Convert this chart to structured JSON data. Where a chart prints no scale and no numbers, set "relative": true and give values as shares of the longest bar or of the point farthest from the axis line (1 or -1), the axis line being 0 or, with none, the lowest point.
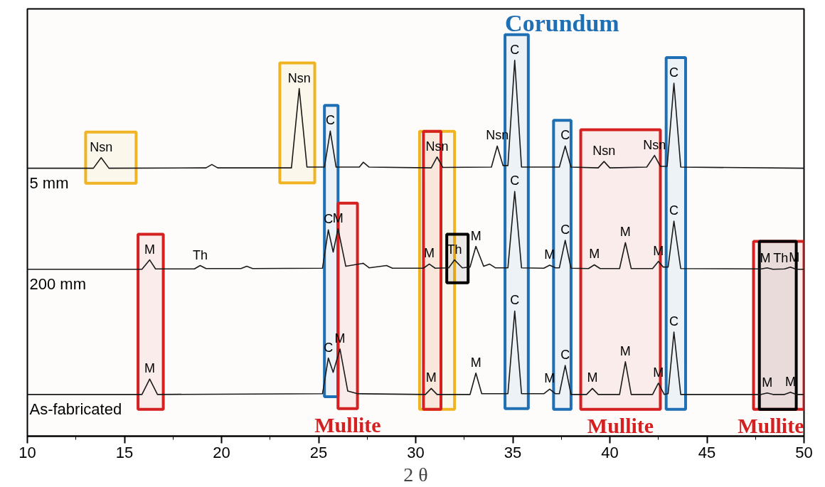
{
  "chart_data": {
    "type": "line",
    "relative": true,
    "xlabel": "2 θ",
    "xlim": [
      10,
      50
    ],
    "xticks": [
      10,
      {
        "value": 12.5,
        "label": null
      },
      15,
      {
        "value": 17.5,
        "label": null
      },
      20,
      {
        "value": 22.5,
        "label": null
      },
      25,
      {
        "value": 27.5,
        "label": null
      },
      30,
      {
        "value": 32.5,
        "label": null
      },
      35,
      {
        "value": 37.5,
        "label": null
      },
      40,
      {
        "value": 42.5,
        "label": null
      },
      45,
      {
        "value": 47.5,
        "label": null
      },
      50
    ],
    "grid": false,
    "marker": "none",
    "line_style": "solid",
    "tick_labels": "x",
    "series": [
      {
        "name": "5 mm",
        "color": "#1a1a1a",
        "x": [
          10,
          13.4,
          13.8,
          14.2,
          19.2,
          19.5,
          19.8,
          23.6,
          24.0,
          24.4,
          25.3,
          25.6,
          25.9,
          27.1,
          27.3,
          27.6,
          30.8,
          31.1,
          31.4,
          33.9,
          34.2,
          34.5,
          34.75,
          35.1,
          35.45,
          37.4,
          37.7,
          38.0,
          39.4,
          39.7,
          40.0,
          41.9,
          42.3,
          42.6,
          42.95,
          43.3,
          43.65,
          50
        ],
        "values": [
          0.713,
          0.713,
          0.741,
          0.713,
          0.714,
          0.723,
          0.714,
          0.714,
          0.925,
          0.716,
          0.716,
          0.812,
          0.716,
          0.716,
          0.729,
          0.716,
          0.714,
          0.743,
          0.715,
          0.716,
          0.772,
          0.72,
          0.72,
          1.0,
          0.716,
          0.716,
          0.772,
          0.716,
          0.714,
          0.731,
          0.714,
          0.716,
          0.747,
          0.718,
          0.718,
          0.939,
          0.716,
          0.713
        ]
      },
      {
        "name": "200 mm",
        "color": "#1a1a1a",
        "x": [
          10,
          15.9,
          16.3,
          16.6,
          18.6,
          18.9,
          19.2,
          21.0,
          21.3,
          21.6,
          25.2,
          25.5,
          25.75,
          26.0,
          26.4,
          27.3,
          27.6,
          28.5,
          28.8,
          30.4,
          30.7,
          31.0,
          31.7,
          32.0,
          32.4,
          32.8,
          33.1,
          33.5,
          33.8,
          34.1,
          34.75,
          35.1,
          35.45,
          36.6,
          36.9,
          37.2,
          37.4,
          37.7,
          38.0,
          38.9,
          39.2,
          39.5,
          40.5,
          40.8,
          41.1,
          42.2,
          42.5,
          42.75,
          43.0,
          43.3,
          43.65,
          47.8,
          48.1,
          48.4,
          49.0,
          49.3,
          49.6,
          50
        ],
        "values": [
          0.444,
          0.444,
          0.469,
          0.445,
          0.445,
          0.454,
          0.446,
          0.446,
          0.452,
          0.446,
          0.447,
          0.549,
          0.49,
          0.552,
          0.452,
          0.46,
          0.448,
          0.454,
          0.447,
          0.447,
          0.458,
          0.447,
          0.448,
          0.469,
          0.448,
          0.45,
          0.505,
          0.452,
          0.458,
          0.448,
          0.448,
          0.651,
          0.448,
          0.447,
          0.455,
          0.448,
          0.448,
          0.521,
          0.447,
          0.446,
          0.456,
          0.446,
          0.446,
          0.515,
          0.446,
          0.446,
          0.465,
          0.45,
          0.45,
          0.572,
          0.446,
          0.445,
          0.448,
          0.444,
          0.445,
          0.45,
          0.444,
          0.444
        ]
      },
      {
        "name": "As-fabricated",
        "color": "#1a1a1a",
        "x": [
          10,
          15.9,
          16.3,
          16.7,
          25.2,
          25.5,
          25.75,
          26.1,
          26.5,
          27.0,
          30.5,
          30.8,
          31.1,
          32.8,
          33.1,
          33.4,
          34.75,
          35.1,
          35.45,
          36.6,
          36.9,
          37.2,
          37.4,
          37.7,
          38.0,
          38.8,
          39.1,
          39.4,
          40.5,
          40.8,
          41.1,
          42.2,
          42.5,
          42.8,
          43.0,
          43.3,
          43.65,
          47.8,
          48.1,
          48.4,
          49.0,
          49.3,
          49.6,
          50
        ],
        "values": [
          0.111,
          0.111,
          0.152,
          0.111,
          0.113,
          0.208,
          0.17,
          0.232,
          0.12,
          0.113,
          0.111,
          0.127,
          0.111,
          0.111,
          0.168,
          0.113,
          0.113,
          0.333,
          0.113,
          0.113,
          0.125,
          0.113,
          0.113,
          0.188,
          0.111,
          0.111,
          0.127,
          0.111,
          0.111,
          0.198,
          0.111,
          0.111,
          0.141,
          0.111,
          0.113,
          0.277,
          0.111,
          0.111,
          0.115,
          0.111,
          0.111,
          0.117,
          0.111,
          0.111
        ]
      }
    ],
    "annotations": [
      {
        "text": "Nsn",
        "x": 13.8,
        "y": 0.741
      },
      {
        "text": "Nsn",
        "x": 24.0,
        "y": 0.925
      },
      {
        "text": "C",
        "x": 25.6,
        "y": 0.812
      },
      {
        "text": "Nsn",
        "x": 31.1,
        "y": 0.743
      },
      {
        "text": "Nsn",
        "x": 34.2,
        "y": 0.772
      },
      {
        "text": "C",
        "x": 35.1,
        "y": 1.0
      },
      {
        "text": "C",
        "x": 37.7,
        "y": 0.772
      },
      {
        "text": "Nsn",
        "x": 39.7,
        "y": 0.731
      },
      {
        "text": "Nsn",
        "x": 42.3,
        "y": 0.747
      },
      {
        "text": "C",
        "x": 43.3,
        "y": 0.939
      },
      {
        "text": "M",
        "x": 16.3,
        "y": 0.469
      },
      {
        "text": "Th",
        "x": 18.9,
        "y": 0.454
      },
      {
        "text": "C",
        "x": 25.5,
        "y": 0.549
      },
      {
        "text": "M",
        "x": 26.0,
        "y": 0.552
      },
      {
        "text": "M",
        "x": 30.7,
        "y": 0.458
      },
      {
        "text": "Th",
        "x": 32.0,
        "y": 0.469
      },
      {
        "text": "M",
        "x": 33.1,
        "y": 0.505
      },
      {
        "text": "C",
        "x": 35.1,
        "y": 0.651
      },
      {
        "text": "M",
        "x": 36.9,
        "y": 0.455
      },
      {
        "text": "C",
        "x": 37.7,
        "y": 0.521
      },
      {
        "text": "M",
        "x": 39.2,
        "y": 0.456
      },
      {
        "text": "M",
        "x": 40.8,
        "y": 0.515
      },
      {
        "text": "M",
        "x": 42.5,
        "y": 0.465
      },
      {
        "text": "C",
        "x": 43.3,
        "y": 0.572
      },
      {
        "text": "M",
        "x": 48.0,
        "y": 0.446
      },
      {
        "text": "Th",
        "x": 48.8,
        "y": 0.446
      },
      {
        "text": "M",
        "x": 49.5,
        "y": 0.448
      },
      {
        "text": "M",
        "x": 16.3,
        "y": 0.152
      },
      {
        "text": "C",
        "x": 25.5,
        "y": 0.208
      },
      {
        "text": "M",
        "x": 26.1,
        "y": 0.232
      },
      {
        "text": "M",
        "x": 30.8,
        "y": 0.127
      },
      {
        "text": "M",
        "x": 33.1,
        "y": 0.168
      },
      {
        "text": "C",
        "x": 35.1,
        "y": 0.333
      },
      {
        "text": "M",
        "x": 36.9,
        "y": 0.125
      },
      {
        "text": "C",
        "x": 37.7,
        "y": 0.188
      },
      {
        "text": "M",
        "x": 39.1,
        "y": 0.127
      },
      {
        "text": "M",
        "x": 40.8,
        "y": 0.198
      },
      {
        "text": "M",
        "x": 42.5,
        "y": 0.141
      },
      {
        "text": "C",
        "x": 43.3,
        "y": 0.277
      },
      {
        "text": "M",
        "x": 48.1,
        "y": 0.115
      },
      {
        "text": "M",
        "x": 49.3,
        "y": 0.117
      }
    ],
    "bands": [
      {
        "axis": "x",
        "from": 13.0,
        "to": 15.6,
        "color": "#f0b323",
        "label": null
      },
      {
        "axis": "x",
        "from": 23.0,
        "to": 24.8,
        "color": "#f0b323",
        "label": null
      },
      {
        "axis": "x",
        "from": 30.2,
        "to": 32.0,
        "color": "#f0b323",
        "label": null
      },
      {
        "axis": "x",
        "from": 25.3,
        "to": 26.0,
        "color": "#1f6fb5",
        "label": null
      },
      {
        "axis": "x",
        "from": 34.6,
        "to": 35.8,
        "color": "#1f6fb5",
        "label": "Corundum"
      },
      {
        "axis": "x",
        "from": 37.1,
        "to": 38.0,
        "color": "#1f6fb5",
        "label": null
      },
      {
        "axis": "x",
        "from": 42.9,
        "to": 43.9,
        "color": "#1f6fb5",
        "label": null
      },
      {
        "axis": "x",
        "from": 15.7,
        "to": 17.0,
        "color": "#d42020",
        "label": null
      },
      {
        "axis": "x",
        "from": 26.0,
        "to": 27.0,
        "color": "#d42020",
        "label": "Mullite"
      },
      {
        "axis": "x",
        "from": 30.4,
        "to": 31.3,
        "color": "#d42020",
        "label": null
      },
      {
        "axis": "x",
        "from": 38.5,
        "to": 42.6,
        "color": "#d42020",
        "label": "Mullite"
      },
      {
        "axis": "x",
        "from": 47.4,
        "to": 50.0,
        "color": "#d42020",
        "label": "Mullite"
      },
      {
        "axis": "x",
        "from": 31.6,
        "to": 32.7,
        "color": "#000000",
        "label": null
      },
      {
        "axis": "x",
        "from": 47.7,
        "to": 49.6,
        "color": "#000000",
        "label": null
      }
    ]
  }
}
